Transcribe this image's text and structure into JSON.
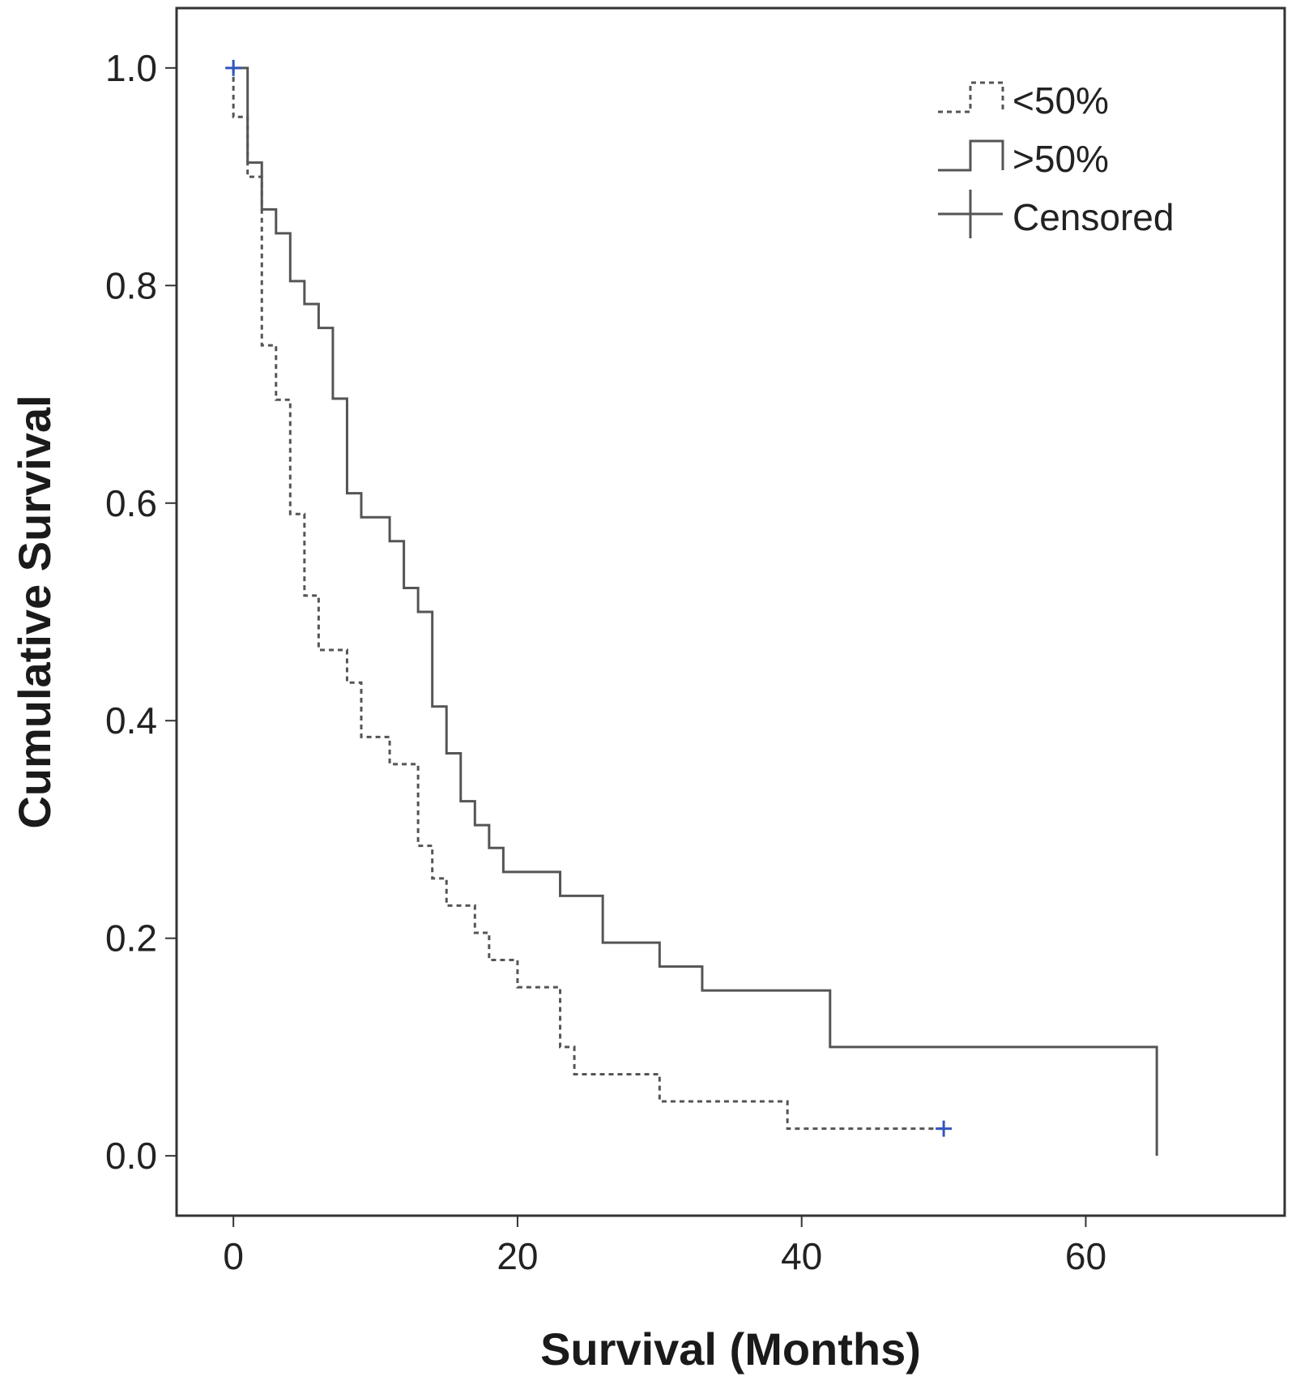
{
  "chart_data": {
    "type": "line",
    "subtype": "kaplan-meier-step",
    "title": "",
    "xlabel": "Survival (Months)",
    "ylabel": "Cumulative Survival",
    "xlim": [
      -4,
      74
    ],
    "ylim": [
      -0.055,
      1.055
    ],
    "xticks": [
      {
        "value": 0,
        "label": "0"
      },
      {
        "value": 20,
        "label": "20"
      },
      {
        "value": 40,
        "label": "40"
      },
      {
        "value": 60,
        "label": "60"
      }
    ],
    "yticks": [
      {
        "value": 0.0,
        "label": "0.0"
      },
      {
        "value": 0.2,
        "label": "0.2"
      },
      {
        "value": 0.4,
        "label": "0.4"
      },
      {
        "value": 0.6,
        "label": "0.6"
      },
      {
        "value": 0.8,
        "label": "0.8"
      },
      {
        "value": 1.0,
        "label": "1.0"
      }
    ],
    "grid": false,
    "legend_position": "top-right",
    "legend": [
      {
        "label": "<50%",
        "symbol": "dashed-step"
      },
      {
        "label": ">50%",
        "symbol": "solid-step"
      },
      {
        "label": "Censored",
        "symbol": "plus"
      }
    ],
    "series": [
      {
        "name": "<50%",
        "style": "dashed",
        "color": "#555555",
        "x": [
          0,
          0,
          1,
          2,
          3,
          4,
          5,
          6,
          8,
          9,
          11,
          13,
          14,
          15,
          17,
          18,
          20,
          23,
          24,
          30,
          39,
          50
        ],
        "y": [
          1.0,
          0.955,
          0.9,
          0.745,
          0.695,
          0.59,
          0.515,
          0.465,
          0.435,
          0.385,
          0.36,
          0.285,
          0.255,
          0.23,
          0.205,
          0.18,
          0.155,
          0.1,
          0.075,
          0.05,
          0.025,
          0.025
        ],
        "censored": [
          {
            "x": 50,
            "y": 0.025
          }
        ]
      },
      {
        "name": ">50%",
        "style": "solid",
        "color": "#555555",
        "x": [
          0,
          1,
          2,
          3,
          4,
          5,
          6,
          7,
          8,
          9,
          11,
          12,
          13,
          14,
          15,
          16,
          17,
          18,
          19,
          23,
          26,
          30,
          33,
          42,
          65,
          65
        ],
        "y": [
          1.0,
          0.913,
          0.87,
          0.848,
          0.804,
          0.783,
          0.761,
          0.696,
          0.609,
          0.587,
          0.565,
          0.522,
          0.5,
          0.413,
          0.37,
          0.326,
          0.304,
          0.283,
          0.261,
          0.239,
          0.196,
          0.174,
          0.152,
          0.1,
          0.1,
          0.0
        ],
        "censored": [
          {
            "x": 0,
            "y": 1.0
          }
        ]
      }
    ],
    "colors": {
      "line": "#555555",
      "censor_mark": "#3355bb",
      "frame": "#333333"
    }
  }
}
